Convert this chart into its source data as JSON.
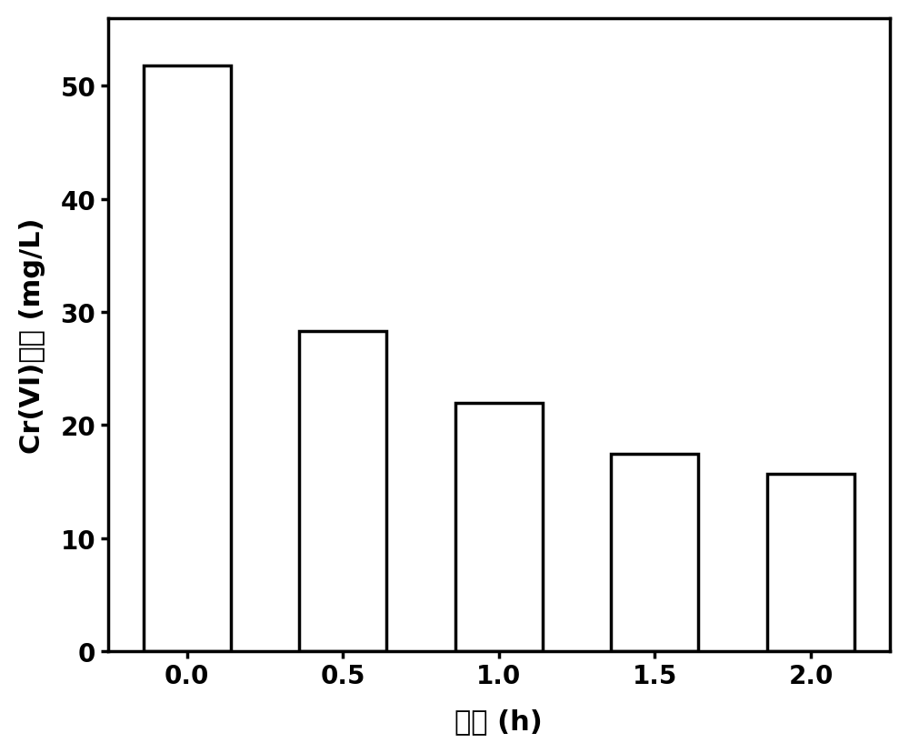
{
  "categories": [
    "0.0",
    "0.5",
    "1.0",
    "1.5",
    "2.0"
  ],
  "x_values": [
    0.0,
    0.5,
    1.0,
    1.5,
    2.0
  ],
  "values": [
    51.8,
    28.3,
    22.0,
    17.5,
    15.7
  ],
  "bar_color": "#ffffff",
  "bar_edgecolor": "#000000",
  "bar_linewidth": 2.5,
  "bar_width": 0.28,
  "xlabel": "时间 (h)",
  "ylabel": "Cr(VI)浓度 (mg/L)",
  "ylim": [
    0,
    56
  ],
  "yticks": [
    0,
    10,
    20,
    30,
    40,
    50
  ],
  "xticks": [
    0.0,
    0.5,
    1.0,
    1.5,
    2.0
  ],
  "label_fontsize": 22,
  "tick_fontsize": 20,
  "axis_linewidth": 2.5,
  "background_color": "#ffffff"
}
